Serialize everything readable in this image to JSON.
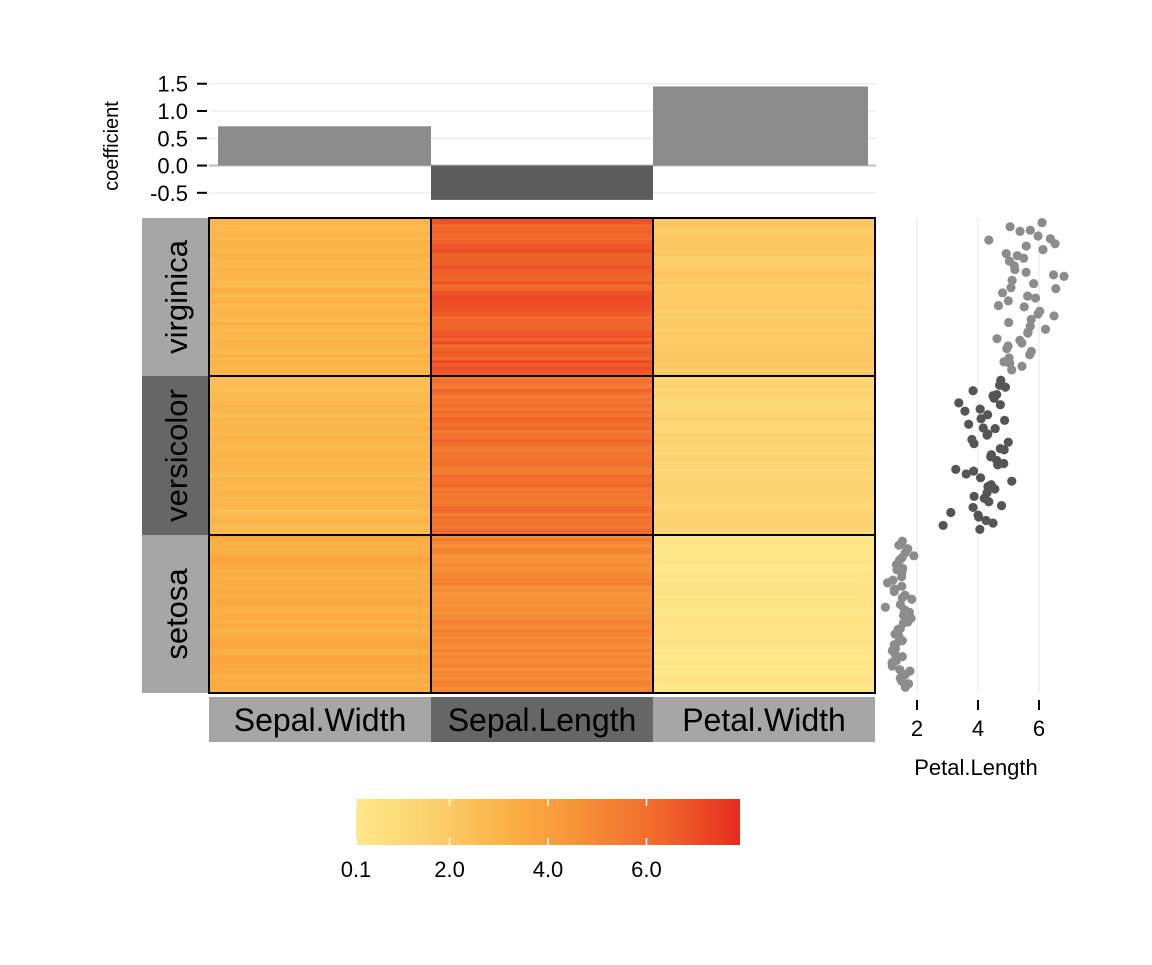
{
  "chart_data": [
    {
      "type": "bar",
      "ylabel": "coefficient",
      "categories": [
        "Sepal.Width",
        "Sepal.Length",
        "Petal.Width"
      ],
      "values": [
        0.72,
        -0.63,
        1.45
      ],
      "ylim": [
        -0.65,
        1.55
      ],
      "yticks": [
        "-0.5",
        "0.0",
        "0.5",
        "1.0",
        "1.5"
      ],
      "grid": true
    },
    {
      "type": "heatmap",
      "rows": [
        "virginica",
        "versicolor",
        "setosa"
      ],
      "columns": [
        "Sepal.Width",
        "Sepal.Length",
        "Petal.Width"
      ],
      "mean_values": [
        [
          2.97,
          6.59,
          2.03
        ],
        [
          2.77,
          5.94,
          1.33
        ],
        [
          3.43,
          5.01,
          0.25
        ]
      ],
      "colorbar": {
        "ticks": [
          "0.1",
          "2.0",
          "4.0",
          "6.0"
        ],
        "range": [
          0.1,
          7.9
        ],
        "colors": [
          "#fee78a",
          "#fcd06d",
          "#fbb044",
          "#f68e36",
          "#f0662b",
          "#e62b20"
        ]
      }
    },
    {
      "type": "scatter",
      "xlabel": "Petal.Length",
      "xticks": [
        "2",
        "4",
        "6"
      ],
      "xlim": [
        1.0,
        7.0
      ],
      "series": [
        {
          "group": "virginica",
          "color": "#8c8c8c",
          "values": [
            6.0,
            5.1,
            5.9,
            5.6,
            5.8,
            6.6,
            4.5,
            6.3,
            5.8,
            6.1,
            5.1,
            5.3,
            5.5,
            5.0,
            5.1,
            5.3,
            5.5,
            6.7,
            6.9,
            5.0,
            5.7,
            4.9,
            6.7,
            4.9,
            5.7,
            6.0,
            4.8,
            4.9,
            5.6,
            5.8,
            6.1,
            6.4,
            5.6,
            5.1,
            5.6,
            6.1,
            5.6,
            5.5,
            4.8,
            5.4,
            5.6,
            5.1,
            5.1,
            5.9,
            5.7,
            5.2,
            5.0,
            5.2,
            5.4,
            5.1
          ]
        },
        {
          "group": "versicolor",
          "color": "#555555",
          "values": [
            4.7,
            4.5,
            4.9,
            4.0,
            4.6,
            4.5,
            4.7,
            3.3,
            4.6,
            3.9,
            3.5,
            4.2,
            4.0,
            4.7,
            3.6,
            4.4,
            4.5,
            4.1,
            4.5,
            3.9,
            4.8,
            4.0,
            4.9,
            4.7,
            4.3,
            4.4,
            4.8,
            5.0,
            4.5,
            3.5,
            3.8,
            3.7,
            3.9,
            5.1,
            4.5,
            4.5,
            4.7,
            4.4,
            4.1,
            4.0,
            4.4,
            4.6,
            4.0,
            3.3,
            4.2,
            4.2,
            4.2,
            4.3,
            3.0,
            4.1
          ]
        },
        {
          "group": "setosa",
          "color": "#8c8c8c",
          "values": [
            1.4,
            1.4,
            1.3,
            1.5,
            1.4,
            1.7,
            1.4,
            1.5,
            1.4,
            1.5,
            1.5,
            1.6,
            1.4,
            1.1,
            1.2,
            1.5,
            1.3,
            1.4,
            1.7,
            1.5,
            1.7,
            1.5,
            1.0,
            1.7,
            1.9,
            1.6,
            1.6,
            1.5,
            1.4,
            1.6,
            1.6,
            1.5,
            1.5,
            1.4,
            1.5,
            1.2,
            1.3,
            1.4,
            1.3,
            1.5,
            1.3,
            1.3,
            1.3,
            1.6,
            1.9,
            1.4,
            1.6,
            1.4,
            1.5,
            1.4
          ]
        }
      ]
    }
  ]
}
